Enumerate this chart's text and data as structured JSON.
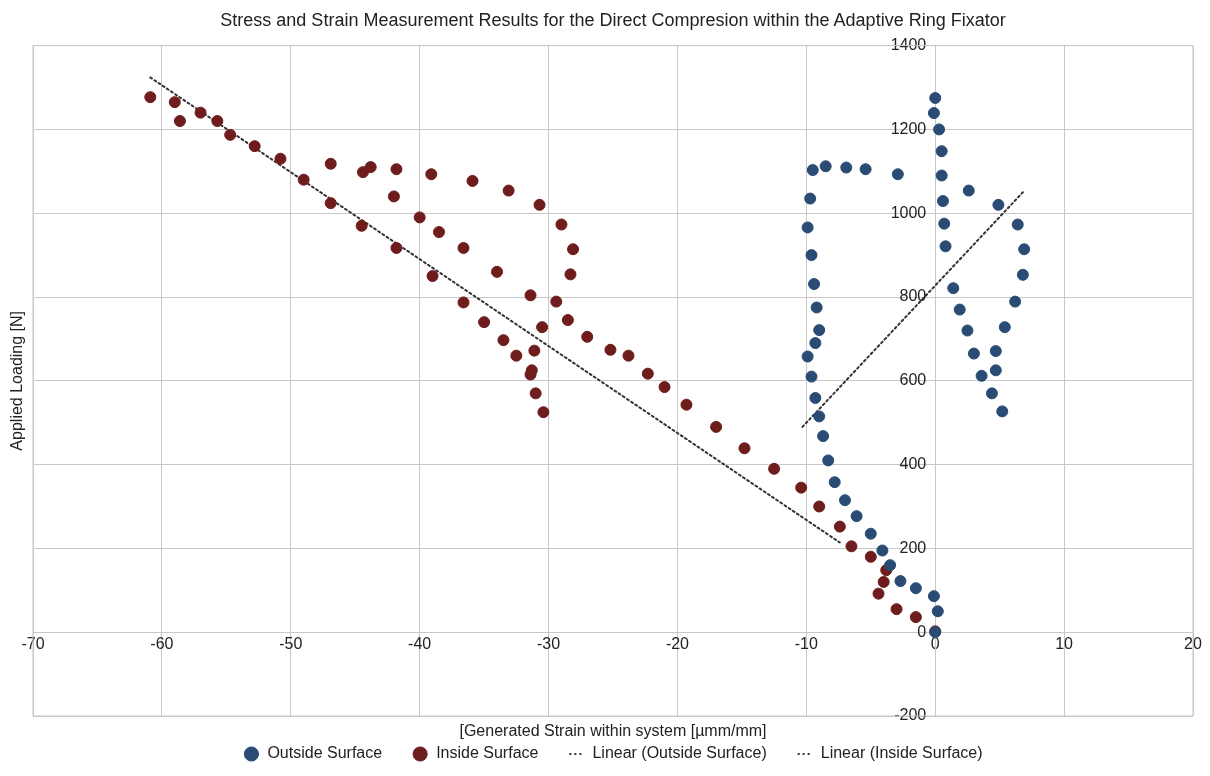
{
  "chart_data": {
    "type": "scatter",
    "title": "Stress and Strain Measurement Results for the Direct Compresion within the Adaptive Ring Fixator",
    "xlabel": "[Generated Strain within system [µmm/mm]",
    "ylabel": "Applied Loading [N]",
    "xlim": [
      -70,
      20
    ],
    "xticks": [
      -70,
      -60,
      -50,
      -40,
      -30,
      -20,
      -10,
      0,
      10,
      20
    ],
    "ylim": [
      -200,
      1400
    ],
    "yticks": [
      -200,
      0,
      200,
      400,
      600,
      800,
      1000,
      1200,
      1400
    ],
    "grid": true,
    "legend": "bottom",
    "marker": "circle",
    "series": [
      {
        "name": "Outside Surface",
        "color": "#2a4c74",
        "x": [
          0,
          0.2,
          -0.1,
          -1.5,
          -2.7,
          -3.5,
          -4.1,
          -5,
          -6.1,
          -7,
          -7.8,
          -8.3,
          -8.7,
          -9,
          -9.3,
          -9.6,
          -9.9,
          -9.3,
          -9,
          -9.2,
          -9.4,
          -9.6,
          -9.9,
          -9.7,
          -9.5,
          -8.5,
          -6.9,
          -5.4,
          -2.9,
          2.6,
          4.9,
          6.4,
          6.9,
          6.8,
          6.2,
          5.4,
          4.7,
          4.7,
          5.2,
          4.4,
          3.6,
          3,
          2.5,
          1.9,
          1.4,
          0.8,
          0.7,
          0.6,
          0.5,
          0.5,
          0.3,
          -0.1,
          0
        ],
        "values": [
          0,
          50,
          86,
          105,
          122,
          160,
          195,
          235,
          277,
          315,
          358,
          410,
          468,
          515,
          559,
          610,
          658,
          690,
          721,
          775,
          831,
          900,
          966,
          1035,
          1103,
          1112,
          1109,
          1105,
          1093,
          1054,
          1020,
          973,
          914,
          853,
          789,
          728,
          671,
          625,
          527,
          570,
          612,
          665,
          720,
          770,
          821,
          921,
          975,
          1029,
          1090,
          1148,
          1200,
          1239,
          1275
        ]
      },
      {
        "name": "Inside Surface",
        "color": "#6e1c1c",
        "x": [
          0,
          -1.5,
          -3,
          -4.4,
          -4,
          -3.8,
          -5,
          -6.5,
          -7.4,
          -9,
          -10.4,
          -12.5,
          -14.8,
          -17,
          -19.3,
          -21,
          -22.3,
          -23.8,
          -25.2,
          -27,
          -28.5,
          -31.4,
          -34,
          -36.6,
          -38.5,
          -40,
          -42,
          -44.4,
          -46.9,
          -43.8,
          -41.8,
          -39.1,
          -35.9,
          -33.1,
          -30.7,
          -29,
          -28.1,
          -28.3,
          -29.4,
          -30.5,
          -31.1,
          -31.3,
          -30.4,
          -31,
          -31.4,
          -32.5,
          -33.5,
          -35,
          -36.6,
          -39,
          -41.8,
          -44.5,
          -46.9,
          -49,
          -50.8,
          -52.8,
          -54.7,
          -55.7,
          -57,
          -58.6,
          -60.9,
          -59
        ],
        "values": [
          2,
          36,
          55,
          92,
          120,
          148,
          180,
          205,
          252,
          300,
          345,
          390,
          439,
          490,
          543,
          585,
          617,
          660,
          674,
          705,
          745,
          804,
          860,
          917,
          955,
          990,
          1040,
          1098,
          1118,
          1110,
          1105,
          1093,
          1077,
          1054,
          1020,
          973,
          914,
          854,
          789,
          728,
          672,
          625,
          525,
          570,
          615,
          660,
          697,
          740,
          787,
          850,
          917,
          970,
          1024,
          1080,
          1130,
          1160,
          1187,
          1220,
          1240,
          1220,
          1277,
          1265
        ]
      },
      {
        "name": "Linear (Outside Surface)",
        "type": "line",
        "color": "#333333",
        "line_style": "dotted",
        "marker": "none",
        "x": [
          -10.3,
          6.8
        ],
        "values": [
          490,
          1050
        ]
      },
      {
        "name": "Linear (Inside Surface)",
        "type": "line",
        "color": "#333333",
        "line_style": "dotted",
        "marker": "none",
        "x": [
          -60.9,
          -7.4
        ],
        "values": [
          1324,
          214
        ]
      }
    ]
  }
}
